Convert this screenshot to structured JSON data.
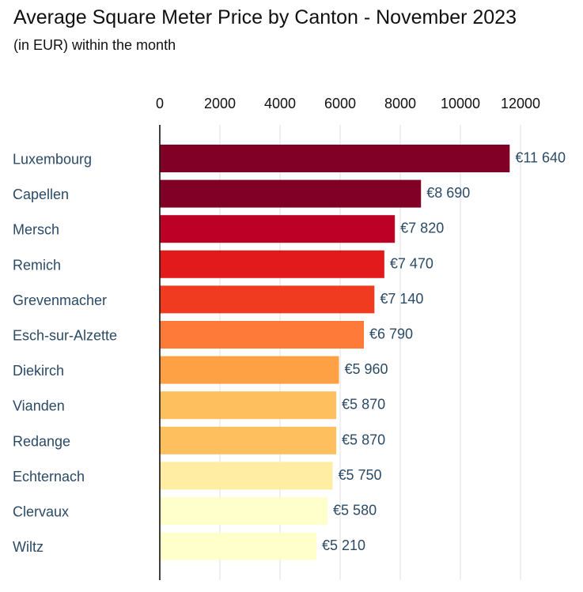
{
  "header": {
    "title": "Average Square Meter Price by Canton - November 2023",
    "subtitle": "(in EUR) within the month"
  },
  "chart_data": {
    "type": "bar",
    "orientation": "horizontal",
    "title": "Average Square Meter Price by Canton - November 2023",
    "subtitle": "(in EUR) within the month",
    "xlabel": "",
    "ylabel": "",
    "xlim": [
      0,
      13000
    ],
    "x_ticks": [
      0,
      2000,
      4000,
      6000,
      8000,
      10000,
      12000
    ],
    "x_axis_position": "top",
    "grid": "vertical",
    "categories": [
      "Luxembourg",
      "Capellen",
      "Mersch",
      "Remich",
      "Grevenmacher",
      "Esch-sur-Alzette",
      "Diekirch",
      "Vianden",
      "Redange",
      "Echternach",
      "Clervaux",
      "Wiltz"
    ],
    "values": [
      11640,
      8690,
      7820,
      7470,
      7140,
      6790,
      5960,
      5870,
      5870,
      5750,
      5580,
      5210
    ],
    "value_labels": [
      "€11 640",
      "€8 690",
      "€7 820",
      "€7 470",
      "€7 140",
      "€6 790",
      "€5 960",
      "€5 870",
      "€5 870",
      "€5 750",
      "€5 580",
      "€5 210"
    ],
    "colors": [
      "#800026",
      "#800026",
      "#bd0026",
      "#e31a1c",
      "#f03b20",
      "#fd7a38",
      "#fea145",
      "#fec05f",
      "#fec05f",
      "#feeda2",
      "#ffffcc",
      "#ffffcc"
    ]
  }
}
